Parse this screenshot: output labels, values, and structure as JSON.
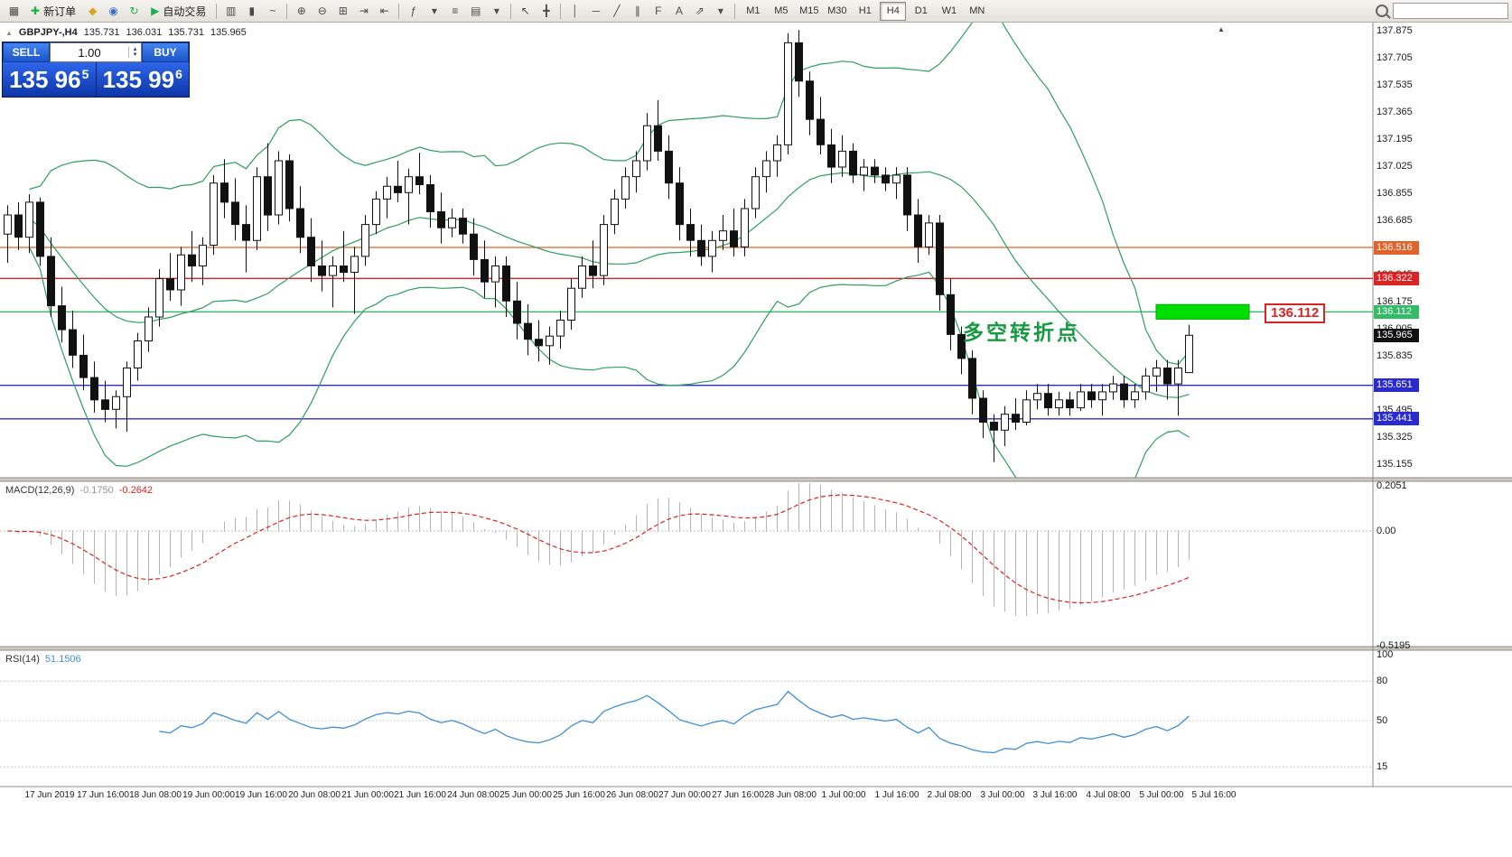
{
  "icons": {
    "volume_up": "▴",
    "volume_down": "▾",
    "symbol_marker": "▲",
    "scroll_end_marker": "▲"
  },
  "toolbar": {
    "items": [
      {
        "t": "icon",
        "name": "new-chart-icon",
        "g": "▦"
      },
      {
        "t": "btn",
        "name": "new-order-button",
        "g": "✚",
        "gc": "#1fae4e",
        "label": "新订单"
      },
      {
        "t": "icon",
        "name": "favorites-icon",
        "g": "◆",
        "gc": "#d9a520"
      },
      {
        "t": "icon",
        "name": "accounts-icon",
        "g": "◉",
        "gc": "#3a6fd0"
      },
      {
        "t": "icon",
        "name": "refresh-icon",
        "g": "↻",
        "gc": "#1fae4e"
      },
      {
        "t": "btn",
        "name": "auto-trading-button",
        "g": "▶",
        "gc": "#1fae4e",
        "label": "自动交易"
      },
      {
        "t": "sep"
      },
      {
        "t": "icon",
        "name": "bar-chart-icon",
        "g": "▥"
      },
      {
        "t": "icon",
        "name": "candlestick-chart-icon",
        "g": "▮"
      },
      {
        "t": "icon",
        "name": "line-chart-icon",
        "g": "~"
      },
      {
        "t": "sep"
      },
      {
        "t": "icon",
        "name": "zoom-in-icon",
        "g": "⊕"
      },
      {
        "t": "icon",
        "name": "zoom-out-icon",
        "g": "⊖"
      },
      {
        "t": "icon",
        "name": "tile-windows-icon",
        "g": "⊞"
      },
      {
        "t": "icon",
        "name": "auto-scroll-icon",
        "g": "⇥"
      },
      {
        "t": "icon",
        "name": "chart-shift-icon",
        "g": "⇤"
      },
      {
        "t": "sep"
      },
      {
        "t": "icon",
        "name": "indicators-icon",
        "g": "ƒ"
      },
      {
        "t": "icon",
        "name": "indicators-dropdown-icon",
        "g": "▾"
      },
      {
        "t": "icon",
        "name": "periods-dropdown-icon",
        "g": "≡"
      },
      {
        "t": "icon",
        "name": "templates-icon",
        "g": "▤"
      },
      {
        "t": "icon",
        "name": "templates-dropdown-icon",
        "g": "▾"
      },
      {
        "t": "sep"
      },
      {
        "t": "icon",
        "name": "cursor-icon",
        "g": "↖"
      },
      {
        "t": "icon",
        "name": "crosshair-icon",
        "g": "╋"
      },
      {
        "t": "sep"
      },
      {
        "t": "icon",
        "name": "vertical-line-icon",
        "g": "│"
      },
      {
        "t": "icon",
        "name": "horizontal-line-icon",
        "g": "─"
      },
      {
        "t": "icon",
        "name": "trendline-icon",
        "g": "╱"
      },
      {
        "t": "icon",
        "name": "channel-icon",
        "g": "∥"
      },
      {
        "t": "icon",
        "name": "fibonacci-icon",
        "g": "F"
      },
      {
        "t": "icon",
        "name": "text-label-icon",
        "g": "A"
      },
      {
        "t": "icon",
        "name": "arrows-tool-icon",
        "g": "⇗"
      },
      {
        "t": "icon",
        "name": "objects-dropdown-icon",
        "g": "▾"
      },
      {
        "t": "sep"
      }
    ],
    "timeframes": [
      "M1",
      "M5",
      "M15",
      "M30",
      "H1",
      "H4",
      "D1",
      "W1",
      "MN"
    ],
    "active_timeframe": "H4",
    "search_value": ""
  },
  "symbol_line": {
    "symbol": "GBPJPY-,H4",
    "open": "135.731",
    "high": "136.031",
    "low": "135.731",
    "close": "135.965"
  },
  "trade_panel": {
    "sell_label": "SELL",
    "buy_label": "BUY",
    "volume": "1.00",
    "sell_price_main": "135 96",
    "sell_price_sup": "5",
    "buy_price_main": "135 99",
    "buy_price_sup": "6"
  },
  "chart_data": {
    "type": "candlestick",
    "title": "GBPJPY- H4",
    "price_axis_ticks": [
      "137.875",
      "137.705",
      "137.535",
      "137.365",
      "137.195",
      "137.025",
      "136.855",
      "136.685",
      "136.515",
      "136.345",
      "136.175",
      "136.005",
      "135.835",
      "135.665",
      "135.495",
      "135.325",
      "135.155"
    ],
    "candles": [
      [
        136.6,
        136.78,
        136.42,
        136.72
      ],
      [
        136.72,
        136.8,
        136.5,
        136.58
      ],
      [
        136.58,
        136.85,
        136.48,
        136.8
      ],
      [
        136.8,
        136.83,
        136.4,
        136.46
      ],
      [
        136.46,
        136.58,
        136.08,
        136.15
      ],
      [
        136.15,
        136.27,
        135.92,
        136.0
      ],
      [
        136.0,
        136.12,
        135.76,
        135.84
      ],
      [
        135.84,
        135.97,
        135.62,
        135.7
      ],
      [
        135.7,
        135.8,
        135.48,
        135.56
      ],
      [
        135.56,
        135.68,
        135.42,
        135.5
      ],
      [
        135.5,
        135.62,
        135.38,
        135.58
      ],
      [
        135.58,
        135.8,
        135.36,
        135.76
      ],
      [
        135.76,
        135.98,
        135.68,
        135.93
      ],
      [
        135.93,
        136.14,
        135.86,
        136.08
      ],
      [
        136.08,
        136.38,
        136.02,
        136.32
      ],
      [
        136.32,
        136.48,
        136.18,
        136.25
      ],
      [
        136.25,
        136.52,
        136.15,
        136.47
      ],
      [
        136.47,
        136.62,
        136.3,
        136.4
      ],
      [
        136.4,
        136.58,
        136.28,
        136.53
      ],
      [
        136.53,
        136.97,
        136.47,
        136.92
      ],
      [
        136.92,
        137.07,
        136.7,
        136.8
      ],
      [
        136.8,
        136.95,
        136.56,
        136.66
      ],
      [
        136.66,
        136.78,
        136.36,
        136.56
      ],
      [
        136.56,
        137.02,
        136.5,
        136.96
      ],
      [
        136.96,
        137.17,
        136.62,
        136.72
      ],
      [
        136.72,
        137.12,
        136.66,
        137.06
      ],
      [
        137.06,
        137.1,
        136.68,
        136.76
      ],
      [
        136.76,
        136.9,
        136.48,
        136.58
      ],
      [
        136.58,
        136.7,
        136.3,
        136.4
      ],
      [
        136.4,
        136.56,
        136.24,
        136.34
      ],
      [
        136.34,
        136.46,
        136.14,
        136.4
      ],
      [
        136.4,
        136.62,
        136.3,
        136.36
      ],
      [
        136.36,
        136.52,
        136.1,
        136.46
      ],
      [
        136.46,
        136.72,
        136.4,
        136.66
      ],
      [
        136.66,
        136.87,
        136.6,
        136.82
      ],
      [
        136.82,
        136.96,
        136.7,
        136.9
      ],
      [
        136.9,
        137.06,
        136.8,
        136.86
      ],
      [
        136.86,
        137.01,
        136.66,
        136.96
      ],
      [
        136.96,
        137.11,
        136.85,
        136.91
      ],
      [
        136.91,
        136.97,
        136.64,
        136.74
      ],
      [
        136.74,
        136.86,
        136.54,
        136.64
      ],
      [
        136.64,
        136.76,
        136.58,
        136.7
      ],
      [
        136.7,
        136.76,
        136.54,
        136.6
      ],
      [
        136.6,
        136.7,
        136.34,
        136.44
      ],
      [
        136.44,
        136.56,
        136.2,
        136.3
      ],
      [
        136.3,
        136.46,
        136.14,
        136.4
      ],
      [
        136.4,
        136.46,
        136.08,
        136.18
      ],
      [
        136.18,
        136.3,
        135.94,
        136.04
      ],
      [
        136.04,
        136.16,
        135.84,
        135.94
      ],
      [
        135.94,
        136.06,
        135.8,
        135.9
      ],
      [
        135.9,
        136.02,
        135.78,
        135.96
      ],
      [
        135.96,
        136.12,
        135.88,
        136.06
      ],
      [
        136.06,
        136.32,
        136.0,
        136.26
      ],
      [
        136.26,
        136.46,
        136.2,
        136.4
      ],
      [
        136.4,
        136.56,
        136.26,
        136.34
      ],
      [
        136.34,
        136.72,
        136.28,
        136.66
      ],
      [
        136.66,
        136.88,
        136.6,
        136.82
      ],
      [
        136.82,
        137.02,
        136.76,
        136.96
      ],
      [
        136.96,
        137.12,
        136.86,
        137.06
      ],
      [
        137.06,
        137.36,
        137.0,
        137.28
      ],
      [
        137.28,
        137.44,
        137.06,
        137.12
      ],
      [
        137.12,
        137.22,
        136.82,
        136.92
      ],
      [
        136.92,
        137.02,
        136.56,
        136.66
      ],
      [
        136.66,
        136.76,
        136.46,
        136.56
      ],
      [
        136.56,
        136.66,
        136.4,
        136.46
      ],
      [
        136.46,
        136.62,
        136.36,
        136.56
      ],
      [
        136.56,
        136.72,
        136.5,
        136.62
      ],
      [
        136.62,
        136.76,
        136.46,
        136.52
      ],
      [
        136.52,
        136.82,
        136.46,
        136.76
      ],
      [
        136.76,
        137.02,
        136.7,
        136.96
      ],
      [
        136.96,
        137.12,
        136.86,
        137.06
      ],
      [
        137.06,
        137.22,
        136.96,
        137.16
      ],
      [
        137.16,
        137.86,
        137.1,
        137.8
      ],
      [
        137.8,
        137.88,
        137.46,
        137.56
      ],
      [
        137.56,
        137.62,
        137.22,
        137.32
      ],
      [
        137.32,
        137.46,
        137.1,
        137.16
      ],
      [
        137.16,
        137.26,
        136.92,
        137.02
      ],
      [
        137.02,
        137.22,
        136.96,
        137.12
      ],
      [
        137.12,
        137.17,
        136.92,
        136.97
      ],
      [
        136.97,
        137.07,
        136.87,
        137.02
      ],
      [
        137.02,
        137.07,
        136.92,
        136.97
      ],
      [
        136.97,
        137.02,
        136.87,
        136.92
      ],
      [
        136.92,
        137.02,
        136.82,
        136.97
      ],
      [
        136.97,
        137.02,
        136.62,
        136.72
      ],
      [
        136.72,
        136.82,
        136.42,
        136.52
      ],
      [
        136.52,
        136.72,
        136.47,
        136.67
      ],
      [
        136.67,
        136.72,
        136.12,
        136.22
      ],
      [
        136.22,
        136.32,
        135.87,
        135.97
      ],
      [
        135.97,
        136.02,
        135.72,
        135.82
      ],
      [
        135.82,
        135.87,
        135.47,
        135.57
      ],
      [
        135.57,
        135.62,
        135.32,
        135.42
      ],
      [
        135.42,
        135.47,
        135.17,
        135.37
      ],
      [
        135.37,
        135.52,
        135.27,
        135.47
      ],
      [
        135.47,
        135.57,
        135.37,
        135.42
      ],
      [
        135.42,
        135.62,
        135.4,
        135.56
      ],
      [
        135.56,
        135.66,
        135.5,
        135.6
      ],
      [
        135.6,
        135.66,
        135.46,
        135.51
      ],
      [
        135.51,
        135.61,
        135.46,
        135.56
      ],
      [
        135.56,
        135.61,
        135.46,
        135.51
      ],
      [
        135.51,
        135.66,
        135.49,
        135.61
      ],
      [
        135.61,
        135.66,
        135.51,
        135.56
      ],
      [
        135.56,
        135.66,
        135.46,
        135.61
      ],
      [
        135.61,
        135.71,
        135.56,
        135.66
      ],
      [
        135.66,
        135.71,
        135.51,
        135.56
      ],
      [
        135.56,
        135.66,
        135.51,
        135.61
      ],
      [
        135.61,
        135.76,
        135.56,
        135.71
      ],
      [
        135.71,
        135.81,
        135.61,
        135.76
      ],
      [
        135.76,
        135.81,
        135.56,
        135.66
      ],
      [
        135.66,
        135.81,
        135.46,
        135.76
      ],
      [
        135.731,
        136.031,
        135.731,
        135.965
      ]
    ],
    "bollinger": {
      "period": 20,
      "deviation": 2,
      "color": "#2f9e5f"
    },
    "hlines": [
      {
        "price": 136.516,
        "label": "136.516",
        "color": "#e2622a"
      },
      {
        "price": 136.322,
        "label": "136.322",
        "color": "#dd2222"
      },
      {
        "price": 136.112,
        "label": "136.112",
        "color": "#33bb66"
      },
      {
        "price": 135.651,
        "label": "135.651",
        "color": "#2a2ad0"
      },
      {
        "price": 135.441,
        "label": "135.441",
        "color": "#2a2ad0"
      }
    ],
    "current_price": {
      "value": 135.965,
      "label": "135.965",
      "color": "#111111"
    },
    "green_zone": {
      "price_top": 136.158,
      "price_bottom": 136.066,
      "color": "#00dd00"
    },
    "price_callout": {
      "text": "136.112",
      "color": "#dd2222"
    },
    "annotation": {
      "text": "多空转折点",
      "color": "#169a40"
    },
    "macd": {
      "label": "MACD(12,26,9)",
      "value_main": "-0.1750",
      "value_signal": "-0.2642",
      "axis_ticks": [
        {
          "v": 0.2051,
          "label": "0.2051"
        },
        {
          "v": 0,
          "label": "0.00"
        },
        {
          "v": -0.5195,
          "label": "-0.5195"
        }
      ],
      "histogram_color": "#b4b4b4",
      "signal_color": "#dd2222"
    },
    "rsi": {
      "label": "RSI(14)",
      "value": "51.1506",
      "axis_ticks": [
        {
          "v": 100,
          "label": "100"
        },
        {
          "v": 80,
          "label": "80"
        },
        {
          "v": 50,
          "label": "50"
        },
        {
          "v": 15,
          "label": "15"
        }
      ],
      "line_color": "#3f8fd6"
    },
    "time_axis": [
      "17 Jun 2019",
      "17 Jun 16:00",
      "18 Jun 08:00",
      "19 Jun 00:00",
      "19 Jun 16:00",
      "20 Jun 08:00",
      "21 Jun 00:00",
      "21 Jun 16:00",
      "24 Jun 08:00",
      "25 Jun 00:00",
      "25 Jun 16:00",
      "26 Jun 08:00",
      "27 Jun 00:00",
      "27 Jun 16:00",
      "28 Jun 08:00",
      "1 Jul 00:00",
      "1 Jul 16:00",
      "2 Jul 08:00",
      "3 Jul 00:00",
      "3 Jul 16:00",
      "4 Jul 08:00",
      "5 Jul 00:00",
      "5 Jul 16:00"
    ]
  }
}
